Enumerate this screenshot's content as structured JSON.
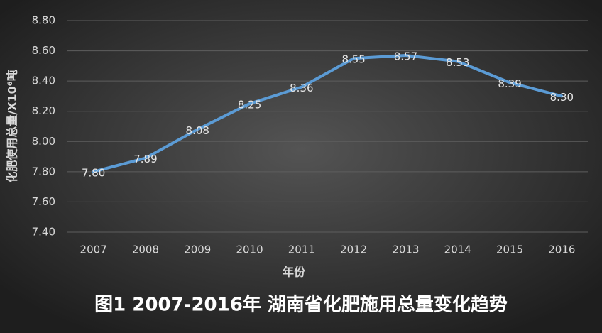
{
  "chart_data": {
    "type": "line",
    "title": "图1 2007-2016年 湖南省化肥施用总量变化趋势",
    "x_label": "年份",
    "y_label": "化肥使用总量/X10⁶吨",
    "categories": [
      "2007",
      "2008",
      "2009",
      "2010",
      "2011",
      "2012",
      "2013",
      "2014",
      "2015",
      "2016"
    ],
    "values": [
      7.8,
      7.89,
      8.08,
      8.25,
      8.36,
      8.55,
      8.57,
      8.53,
      8.39,
      8.3
    ],
    "value_labels": [
      "7.80",
      "7.89",
      "8.08",
      "8.25",
      "8.36",
      "8.55",
      "8.57",
      "8.53",
      "8.39",
      "8.30"
    ],
    "color": "#5b9bd5",
    "ylim": [
      7.4,
      8.8
    ],
    "yticks": [
      {
        "value": 7.4,
        "label": "7.40"
      },
      {
        "value": 7.6,
        "label": "7.60"
      },
      {
        "value": 7.8,
        "label": "7.80"
      },
      {
        "value": 8.0,
        "label": "8.00"
      },
      {
        "value": 8.2,
        "label": "8.20"
      },
      {
        "value": 8.4,
        "label": "8.40"
      },
      {
        "value": 8.6,
        "label": "8.60"
      },
      {
        "value": 8.8,
        "label": "8.80"
      }
    ],
    "grid": true
  }
}
